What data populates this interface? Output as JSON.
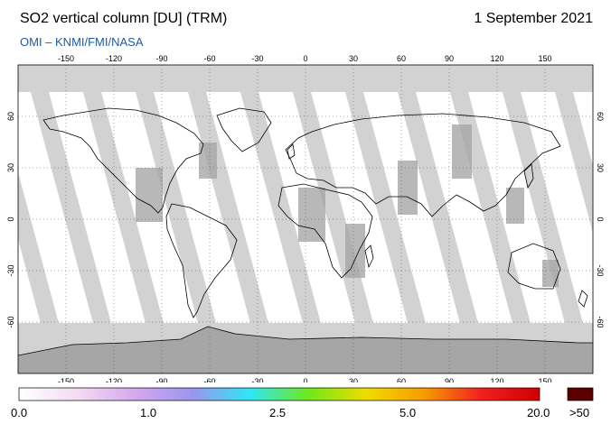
{
  "header": {
    "title": "SO2 vertical column [DU] (TRM)",
    "date": "1 September 2021",
    "subtitle": "OMI  –  KNMI/FMI/NASA"
  },
  "map": {
    "projection": "equirectangular",
    "lon_range": [
      -180,
      180
    ],
    "lat_range": [
      -90,
      90
    ],
    "lon_ticks": [
      "-150",
      "-120",
      "-90",
      "-60",
      "-30",
      "0",
      "30",
      "60",
      "90",
      "120",
      "150"
    ],
    "lat_ticks": [
      "60",
      "30",
      "0",
      "-30",
      "-60"
    ],
    "colors": {
      "land_gap": "#a6a6a6",
      "ocean_gap": "#d2d2d2",
      "coverage": "#ffffff",
      "coast": "#000000"
    }
  },
  "colorbar": {
    "labels": [
      "0.0",
      "1.0",
      "2.5",
      "5.0",
      "20.0"
    ],
    "overflow_label": ">50",
    "overflow_color": "#5a0000",
    "stops": [
      "#ffffff",
      "#f4dcf4",
      "#d6a8ee",
      "#9a96ee",
      "#30e6f4",
      "#6ee81c",
      "#f0dc00",
      "#f89c00",
      "#f02020",
      "#d00000"
    ]
  }
}
